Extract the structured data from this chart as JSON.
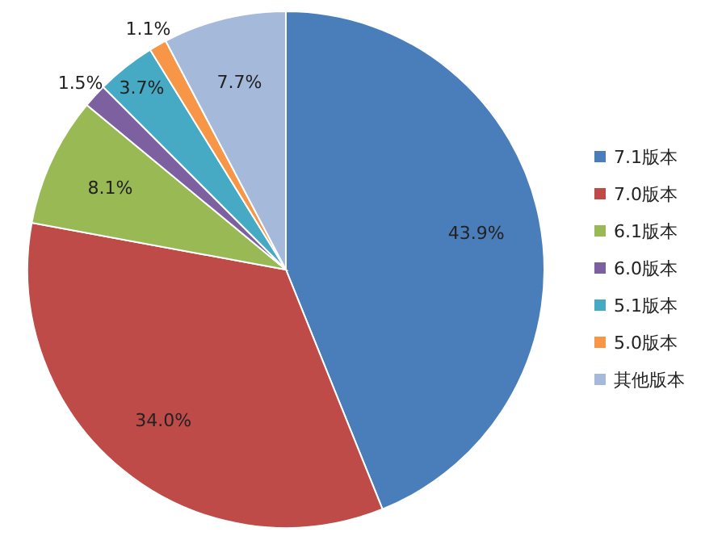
{
  "chart_data": {
    "type": "pie",
    "categories": [
      "7.1版本",
      "7.0版本",
      "6.1版本",
      "6.0版本",
      "5.1版本",
      "5.0版本",
      "其他版本"
    ],
    "values": [
      43.9,
      34.0,
      8.1,
      1.5,
      3.7,
      1.1,
      7.7
    ],
    "value_labels": [
      "43.9%",
      "34.0%",
      "8.1%",
      "1.5%",
      "3.7%",
      "1.1%",
      "7.7%"
    ],
    "colors": [
      "#4a7ebb",
      "#be4b48",
      "#98b954",
      "#7d60a0",
      "#46aac5",
      "#f79646",
      "#a5b9db"
    ],
    "legend": "right"
  }
}
